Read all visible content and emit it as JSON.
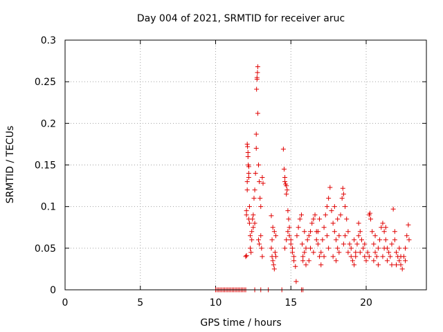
{
  "chart_data": {
    "type": "scatter",
    "title": "Day 004 of 2021, SRMTID for receiver aruc",
    "xlabel": "GPS time / hours",
    "ylabel": "SRMTID / TECUs",
    "xlim": [
      0,
      24
    ],
    "ylim": [
      0,
      0.3
    ],
    "x_ticks": [
      0,
      5,
      10,
      15,
      20
    ],
    "x_tick_labels": [
      "0",
      "5",
      "10",
      "15",
      "20"
    ],
    "y_ticks": [
      0,
      0.05,
      0.1,
      0.15,
      0.2,
      0.25,
      0.3
    ],
    "y_tick_labels": [
      "0",
      "0.05",
      "0.1",
      "0.15",
      "0.2",
      "0.25",
      "0.3"
    ],
    "grid": true,
    "marker": "+",
    "color": "#e00000",
    "series": [
      {
        "name": "SRMTID",
        "points": [
          [
            10.0,
            0.0
          ],
          [
            10.1,
            0.0
          ],
          [
            10.2,
            0.0
          ],
          [
            10.3,
            0.0
          ],
          [
            10.4,
            0.0
          ],
          [
            10.5,
            0.0
          ],
          [
            10.6,
            0.0
          ],
          [
            10.7,
            0.0
          ],
          [
            10.8,
            0.0
          ],
          [
            10.9,
            0.0
          ],
          [
            11.0,
            0.0
          ],
          [
            11.1,
            0.0
          ],
          [
            11.2,
            0.0
          ],
          [
            11.3,
            0.0
          ],
          [
            11.4,
            0.0
          ],
          [
            11.5,
            0.0
          ],
          [
            11.6,
            0.0
          ],
          [
            11.7,
            0.0
          ],
          [
            11.8,
            0.0
          ],
          [
            11.9,
            0.0
          ],
          [
            12.0,
            0.0
          ],
          [
            12.6,
            0.0
          ],
          [
            13.0,
            0.0
          ],
          [
            13.5,
            0.0
          ],
          [
            14.4,
            0.0
          ],
          [
            15.7,
            0.0
          ],
          [
            15.8,
            0.0
          ],
          [
            12.0,
            0.04
          ],
          [
            12.05,
            0.041
          ],
          [
            12.05,
            0.095
          ],
          [
            12.05,
            0.09
          ],
          [
            12.1,
            0.13
          ],
          [
            12.1,
            0.12
          ],
          [
            12.1,
            0.175
          ],
          [
            12.12,
            0.172
          ],
          [
            12.15,
            0.165
          ],
          [
            12.15,
            0.16
          ],
          [
            12.17,
            0.15
          ],
          [
            12.2,
            0.148
          ],
          [
            12.2,
            0.14
          ],
          [
            12.2,
            0.135
          ],
          [
            12.25,
            0.1
          ],
          [
            12.25,
            0.08
          ],
          [
            12.3,
            0.065
          ],
          [
            12.3,
            0.05
          ],
          [
            12.35,
            0.045
          ],
          [
            12.4,
            0.07
          ],
          [
            12.45,
            0.085
          ],
          [
            12.5,
            0.09
          ],
          [
            12.55,
            0.11
          ],
          [
            12.6,
            0.12
          ],
          [
            12.65,
            0.14
          ],
          [
            12.7,
            0.17
          ],
          [
            12.7,
            0.187
          ],
          [
            12.72,
            0.241
          ],
          [
            12.75,
            0.253
          ],
          [
            12.75,
            0.255
          ],
          [
            12.78,
            0.261
          ],
          [
            12.8,
            0.268
          ],
          [
            12.8,
            0.212
          ],
          [
            12.85,
            0.15
          ],
          [
            12.9,
            0.13
          ],
          [
            12.95,
            0.11
          ],
          [
            13.0,
            0.1
          ],
          [
            13.0,
            0.065
          ],
          [
            13.05,
            0.05
          ],
          [
            13.1,
            0.04
          ],
          [
            13.1,
            0.135
          ],
          [
            13.15,
            0.128
          ],
          [
            12.85,
            0.06
          ],
          [
            12.9,
            0.055
          ],
          [
            12.5,
            0.075
          ],
          [
            12.4,
            0.06
          ],
          [
            12.6,
            0.08
          ],
          [
            12.2,
            0.085
          ],
          [
            13.7,
            0.05
          ],
          [
            13.75,
            0.04
          ],
          [
            13.8,
            0.035
          ],
          [
            13.85,
            0.03
          ],
          [
            13.9,
            0.025
          ],
          [
            13.75,
            0.06
          ],
          [
            13.8,
            0.075
          ],
          [
            13.7,
            0.089
          ],
          [
            13.9,
            0.07
          ],
          [
            14.0,
            0.065
          ],
          [
            13.95,
            0.045
          ],
          [
            14.0,
            0.04
          ],
          [
            14.5,
            0.169
          ],
          [
            14.55,
            0.145
          ],
          [
            14.6,
            0.135
          ],
          [
            14.6,
            0.13
          ],
          [
            14.65,
            0.127
          ],
          [
            14.7,
            0.125
          ],
          [
            14.75,
            0.12
          ],
          [
            14.7,
            0.115
          ],
          [
            14.8,
            0.095
          ],
          [
            14.85,
            0.085
          ],
          [
            14.9,
            0.075
          ],
          [
            14.9,
            0.065
          ],
          [
            15.0,
            0.06
          ],
          [
            15.0,
            0.055
          ],
          [
            15.1,
            0.05
          ],
          [
            15.1,
            0.045
          ],
          [
            15.2,
            0.04
          ],
          [
            15.2,
            0.035
          ],
          [
            15.3,
            0.028
          ],
          [
            15.35,
            0.01
          ],
          [
            14.6,
            0.05
          ],
          [
            14.7,
            0.06
          ],
          [
            14.8,
            0.07
          ],
          [
            15.4,
            0.065
          ],
          [
            15.5,
            0.075
          ],
          [
            15.6,
            0.085
          ],
          [
            15.7,
            0.09
          ],
          [
            15.75,
            0.055
          ],
          [
            15.8,
            0.04
          ],
          [
            15.8,
            0.035
          ],
          [
            15.9,
            0.045
          ],
          [
            16.0,
            0.05
          ],
          [
            16.1,
            0.06
          ],
          [
            16.2,
            0.065
          ],
          [
            16.3,
            0.07
          ],
          [
            16.4,
            0.08
          ],
          [
            16.5,
            0.085
          ],
          [
            16.6,
            0.09
          ],
          [
            16.7,
            0.07
          ],
          [
            16.8,
            0.055
          ],
          [
            16.9,
            0.04
          ],
          [
            17.0,
            0.045
          ],
          [
            17.1,
            0.06
          ],
          [
            17.2,
            0.075
          ],
          [
            17.3,
            0.09
          ],
          [
            17.4,
            0.1
          ],
          [
            17.5,
            0.11
          ],
          [
            17.6,
            0.123
          ],
          [
            17.7,
            0.095
          ],
          [
            17.8,
            0.08
          ],
          [
            17.9,
            0.07
          ],
          [
            18.0,
            0.06
          ],
          [
            18.1,
            0.05
          ],
          [
            18.2,
            0.065
          ],
          [
            18.3,
            0.09
          ],
          [
            18.4,
            0.11
          ],
          [
            18.45,
            0.122
          ],
          [
            18.5,
            0.115
          ],
          [
            18.6,
            0.1
          ],
          [
            18.7,
            0.085
          ],
          [
            18.8,
            0.07
          ],
          [
            18.9,
            0.055
          ],
          [
            19.0,
            0.04
          ],
          [
            19.1,
            0.035
          ],
          [
            19.2,
            0.03
          ],
          [
            19.3,
            0.045
          ],
          [
            19.4,
            0.055
          ],
          [
            19.5,
            0.065
          ],
          [
            19.6,
            0.07
          ],
          [
            19.7,
            0.06
          ],
          [
            19.8,
            0.05
          ],
          [
            19.9,
            0.04
          ],
          [
            20.0,
            0.035
          ],
          [
            20.1,
            0.045
          ],
          [
            20.2,
            0.09
          ],
          [
            20.25,
            0.092
          ],
          [
            20.3,
            0.085
          ],
          [
            20.4,
            0.07
          ],
          [
            20.5,
            0.055
          ],
          [
            20.6,
            0.045
          ],
          [
            20.7,
            0.04
          ],
          [
            20.8,
            0.05
          ],
          [
            20.9,
            0.06
          ],
          [
            21.0,
            0.075
          ],
          [
            21.1,
            0.08
          ],
          [
            21.2,
            0.07
          ],
          [
            21.3,
            0.06
          ],
          [
            21.4,
            0.05
          ],
          [
            21.5,
            0.045
          ],
          [
            21.6,
            0.04
          ],
          [
            21.7,
            0.055
          ],
          [
            21.8,
            0.097
          ],
          [
            21.9,
            0.06
          ],
          [
            22.0,
            0.045
          ],
          [
            22.1,
            0.04
          ],
          [
            22.2,
            0.035
          ],
          [
            22.3,
            0.03
          ],
          [
            22.4,
            0.025
          ],
          [
            22.5,
            0.04
          ],
          [
            22.6,
            0.05
          ],
          [
            22.7,
            0.065
          ],
          [
            22.8,
            0.078
          ],
          [
            22.85,
            0.06
          ],
          [
            16.0,
            0.03
          ],
          [
            16.2,
            0.035
          ],
          [
            16.5,
            0.045
          ],
          [
            16.8,
            0.07
          ],
          [
            17.0,
            0.03
          ],
          [
            17.2,
            0.04
          ],
          [
            17.5,
            0.05
          ],
          [
            17.8,
            0.04
          ],
          [
            18.0,
            0.035
          ],
          [
            18.2,
            0.045
          ],
          [
            18.5,
            0.055
          ],
          [
            18.8,
            0.045
          ],
          [
            19.0,
            0.05
          ],
          [
            19.3,
            0.04
          ],
          [
            19.6,
            0.045
          ],
          [
            19.9,
            0.055
          ],
          [
            20.2,
            0.04
          ],
          [
            20.5,
            0.035
          ],
          [
            20.8,
            0.03
          ],
          [
            21.1,
            0.04
          ],
          [
            21.4,
            0.035
          ],
          [
            21.7,
            0.03
          ],
          [
            22.0,
            0.03
          ],
          [
            22.3,
            0.04
          ],
          [
            22.6,
            0.035
          ],
          [
            16.3,
            0.05
          ],
          [
            16.7,
            0.06
          ],
          [
            17.4,
            0.065
          ],
          [
            18.6,
            0.065
          ],
          [
            19.2,
            0.06
          ],
          [
            20.6,
            0.065
          ],
          [
            21.2,
            0.05
          ],
          [
            22.2,
            0.05
          ],
          [
            17.9,
            0.1
          ],
          [
            18.1,
            0.085
          ],
          [
            19.5,
            0.08
          ],
          [
            21.3,
            0.075
          ],
          [
            21.9,
            0.07
          ],
          [
            16.9,
            0.085
          ],
          [
            15.9,
            0.07
          ]
        ]
      }
    ]
  }
}
